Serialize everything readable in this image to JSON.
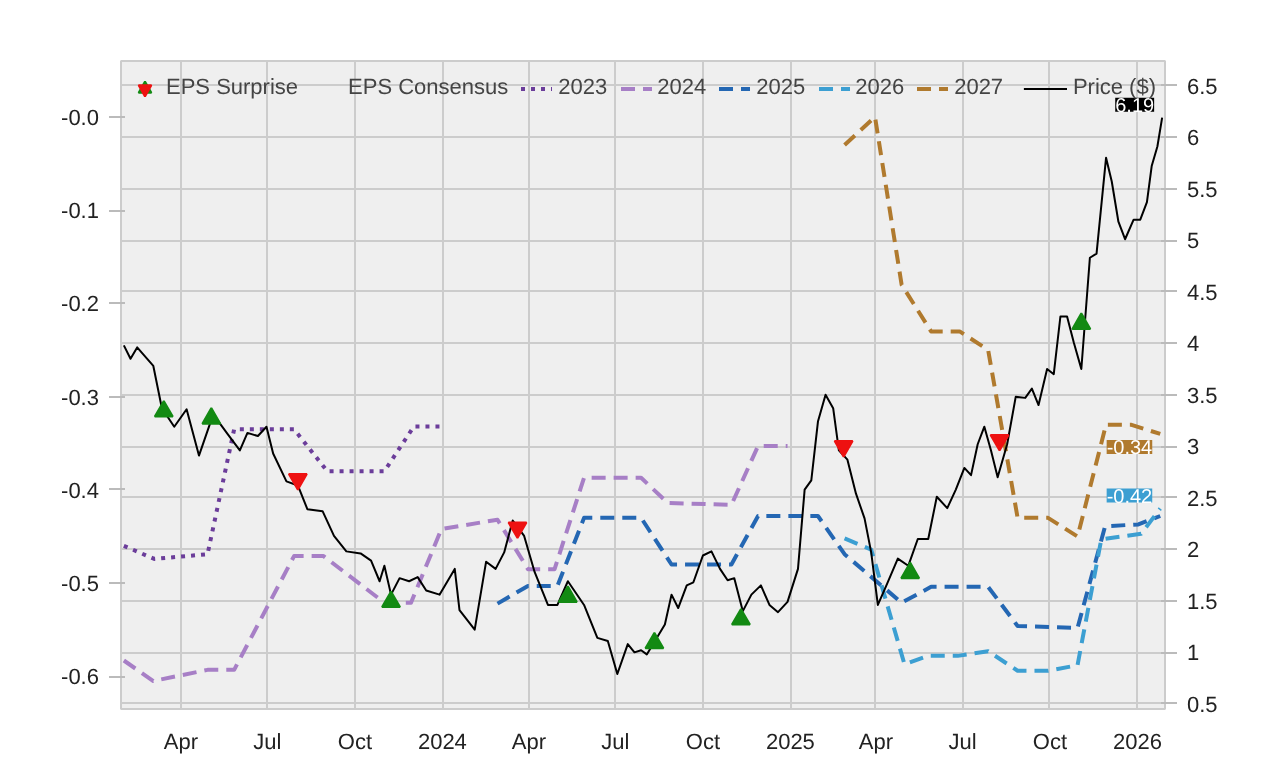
{
  "chart_data": {
    "type": "line",
    "legend_title": "EPS Consensus",
    "legend": "top",
    "grid": true,
    "xlim": [
      "2023-01-28",
      "2026-01-30"
    ],
    "xticks": [
      {
        "value": "2023-04-01",
        "label": "Apr"
      },
      {
        "value": "2023-07-01",
        "label": "Jul"
      },
      {
        "value": "2023-10-01",
        "label": "Oct"
      },
      {
        "value": "2024-01-01",
        "label": "2024"
      },
      {
        "value": "2024-04-01",
        "label": "Apr"
      },
      {
        "value": "2024-07-01",
        "label": "Jul"
      },
      {
        "value": "2024-10-01",
        "label": "Oct"
      },
      {
        "value": "2025-01-01",
        "label": "2025"
      },
      {
        "value": "2025-04-01",
        "label": "Apr"
      },
      {
        "value": "2025-07-01",
        "label": "Jul"
      },
      {
        "value": "2025-10-01",
        "label": "Oct"
      },
      {
        "value": "2026-01-01",
        "label": "2026"
      }
    ],
    "ylim": [
      -0.635,
      0.06
    ],
    "yticks": [
      {
        "value": 0,
        "label": "-0.0"
      },
      -0.1,
      -0.2,
      -0.3,
      -0.4,
      -0.5,
      -0.6
    ],
    "y2lim": [
      0.45,
      6.74
    ],
    "y2ticks": [
      0.5,
      1,
      1.5,
      2,
      2.5,
      3,
      3.5,
      4,
      4.5,
      5,
      5.5,
      6,
      6.5
    ],
    "series": [
      {
        "name": "2023",
        "type": "line",
        "line_style": "dotted",
        "color": "#6b3d9a",
        "x": [
          "2023-01-31",
          "2023-03-04",
          "2023-04-29",
          "2023-05-27",
          "2023-07-29",
          "2023-09-02",
          "2023-11-01",
          "2023-12-02",
          "2023-12-31"
        ],
        "values": [
          -0.46,
          -0.474,
          -0.469,
          -0.335,
          -0.335,
          -0.38,
          -0.38,
          -0.332,
          -0.332
        ]
      },
      {
        "name": "2024",
        "type": "line",
        "line_style": "dashed",
        "color": "#a77fc6",
        "x": [
          "2023-01-31",
          "2023-03-03",
          "2023-04-29",
          "2023-05-27",
          "2023-07-29",
          "2023-08-29",
          "2023-11-01",
          "2023-11-29",
          "2023-12-31",
          "2024-02-28",
          "2024-03-31",
          "2024-04-28",
          "2024-05-29",
          "2024-07-28",
          "2024-08-25",
          "2024-10-31",
          "2024-11-28",
          "2024-12-29"
        ],
        "values": [
          -0.583,
          -0.605,
          -0.593,
          -0.593,
          -0.471,
          -0.471,
          -0.521,
          -0.521,
          -0.442,
          -0.432,
          -0.485,
          -0.485,
          -0.387,
          -0.387,
          -0.414,
          -0.416,
          -0.353,
          -0.353
        ]
      },
      {
        "name": "2025",
        "type": "line",
        "line_style": "dashed",
        "color": "#2467b3",
        "x": [
          "2024-02-28",
          "2024-03-31",
          "2024-05-01",
          "2024-05-29",
          "2024-07-28",
          "2024-08-29",
          "2024-10-31",
          "2024-11-28",
          "2025-01-30",
          "2025-02-27",
          "2025-04-28",
          "2025-05-29",
          "2025-07-28",
          "2025-08-28",
          "2025-10-30",
          "2025-11-28",
          "2026-01-02",
          "2026-01-25"
        ],
        "values": [
          -0.522,
          -0.503,
          -0.503,
          -0.43,
          -0.43,
          -0.48,
          -0.48,
          -0.428,
          -0.428,
          -0.469,
          -0.521,
          -0.504,
          -0.504,
          -0.546,
          -0.548,
          -0.439,
          -0.437,
          -0.428
        ]
      },
      {
        "name": "2026",
        "type": "line",
        "line_style": "dashed",
        "color": "#3c9fd2",
        "x": [
          "2025-02-27",
          "2025-03-27",
          "2025-05-01",
          "2025-05-26",
          "2025-06-26",
          "2025-07-28",
          "2025-08-28",
          "2025-09-29",
          "2025-10-30",
          "2025-11-24",
          "2026-01-05",
          "2026-01-25"
        ],
        "values": [
          -0.452,
          -0.464,
          -0.587,
          -0.578,
          -0.578,
          -0.573,
          -0.594,
          -0.594,
          -0.588,
          -0.453,
          -0.447,
          -0.42
        ],
        "value_labels": [
          null,
          null,
          null,
          null,
          null,
          null,
          null,
          null,
          null,
          null,
          null,
          "-0.42"
        ]
      },
      {
        "name": "2027",
        "type": "line",
        "line_style": "dashed",
        "color": "#b07a2e",
        "x": [
          "2025-02-27",
          "2025-03-31",
          "2025-04-28",
          "2025-05-29",
          "2025-06-28",
          "2025-07-28",
          "2025-08-28",
          "2025-09-29",
          "2025-10-30",
          "2025-11-29",
          "2025-12-25",
          "2026-01-25"
        ],
        "values": [
          -0.03,
          0.0,
          -0.18,
          -0.23,
          -0.23,
          -0.25,
          -0.43,
          -0.43,
          -0.45,
          -0.33,
          -0.33,
          -0.34
        ],
        "value_labels": [
          null,
          null,
          null,
          null,
          null,
          null,
          null,
          null,
          null,
          null,
          null,
          "-0.34"
        ]
      },
      {
        "name": "Price ($)",
        "type": "line",
        "axis": "y2",
        "line_style": "solid",
        "color": "#000000",
        "x": [
          "2023-01-31",
          "2023-02-07",
          "2023-02-14",
          "2023-03-03",
          "2023-03-12",
          "2023-03-25",
          "2023-04-07",
          "2023-04-20",
          "2023-05-05",
          "2023-05-20",
          "2023-06-02",
          "2023-06-10",
          "2023-06-21",
          "2023-06-30",
          "2023-07-07",
          "2023-07-21",
          "2023-08-02",
          "2023-08-12",
          "2023-08-28",
          "2023-09-09",
          "2023-09-22",
          "2023-10-07",
          "2023-10-18",
          "2023-10-27",
          "2023-11-01",
          "2023-11-08",
          "2023-11-17",
          "2023-11-27",
          "2023-12-06",
          "2023-12-15",
          "2023-12-29",
          "2024-01-14",
          "2024-01-19",
          "2024-02-04",
          "2024-02-16",
          "2024-02-26",
          "2024-03-06",
          "2024-03-15",
          "2024-03-27",
          "2024-04-07",
          "2024-04-21",
          "2024-05-01",
          "2024-05-12",
          "2024-05-29",
          "2024-06-12",
          "2024-06-23",
          "2024-07-03",
          "2024-07-14",
          "2024-07-21",
          "2024-07-28",
          "2024-08-03",
          "2024-08-22",
          "2024-08-29",
          "2024-09-05",
          "2024-09-14",
          "2024-09-21",
          "2024-10-01",
          "2024-10-10",
          "2024-10-19",
          "2024-10-27",
          "2024-11-03",
          "2024-11-12",
          "2024-11-21",
          "2024-12-01",
          "2024-12-10",
          "2024-12-19",
          "2024-12-29",
          "2025-01-09",
          "2025-01-16",
          "2025-01-23",
          "2025-01-30",
          "2025-02-07",
          "2025-02-15",
          "2025-02-21",
          "2025-03-02",
          "2025-03-11",
          "2025-03-20",
          "2025-03-27",
          "2025-04-03",
          "2025-04-12",
          "2025-04-24",
          "2025-05-05",
          "2025-05-15",
          "2025-05-26",
          "2025-06-04",
          "2025-06-15",
          "2025-06-24",
          "2025-07-03",
          "2025-07-10",
          "2025-07-17",
          "2025-07-24",
          "2025-07-31",
          "2025-08-07",
          "2025-08-17",
          "2025-08-26",
          "2025-09-05",
          "2025-09-12",
          "2025-09-19",
          "2025-09-28",
          "2025-10-05",
          "2025-10-12",
          "2025-10-19",
          "2025-10-26",
          "2025-11-03",
          "2025-11-12",
          "2025-11-19",
          "2025-11-29",
          "2025-12-05",
          "2025-12-12",
          "2025-12-19",
          "2025-12-28",
          "2026-01-04",
          "2026-01-11",
          "2026-01-16",
          "2026-01-22",
          "2026-01-27"
        ],
        "values": [
          3.98,
          3.85,
          3.96,
          3.78,
          3.37,
          3.19,
          3.36,
          2.91,
          3.31,
          3.12,
          2.96,
          3.13,
          3.1,
          3.19,
          2.93,
          2.66,
          2.62,
          2.39,
          2.37,
          2.13,
          1.98,
          1.96,
          1.89,
          1.69,
          1.84,
          1.56,
          1.72,
          1.69,
          1.73,
          1.6,
          1.56,
          1.81,
          1.41,
          1.22,
          1.88,
          1.81,
          1.97,
          2.28,
          2.13,
          1.78,
          1.46,
          1.46,
          1.69,
          1.46,
          1.14,
          1.11,
          0.79,
          1.08,
          1.0,
          1.02,
          0.98,
          1.27,
          1.56,
          1.43,
          1.65,
          1.68,
          1.94,
          1.98,
          1.81,
          1.7,
          1.72,
          1.4,
          1.56,
          1.65,
          1.46,
          1.39,
          1.49,
          1.81,
          2.58,
          2.67,
          3.24,
          3.5,
          3.37,
          2.96,
          2.87,
          2.54,
          2.3,
          1.97,
          1.46,
          1.65,
          1.91,
          1.84,
          2.1,
          2.1,
          2.51,
          2.4,
          2.58,
          2.79,
          2.72,
          3.02,
          3.19,
          2.96,
          2.7,
          3.02,
          3.48,
          3.47,
          3.56,
          3.4,
          3.75,
          3.7,
          4.26,
          4.26,
          4.01,
          3.75,
          4.83,
          4.87,
          5.8,
          5.57,
          5.18,
          5.01,
          5.2,
          5.2,
          5.37,
          5.72,
          5.91,
          6.19
        ],
        "value_labels": [
          null,
          null,
          null,
          null,
          null,
          null,
          null,
          null,
          null,
          null,
          null,
          null,
          null,
          null,
          null,
          null,
          null,
          null,
          null,
          null,
          null,
          null,
          null,
          null,
          null,
          null,
          null,
          null,
          null,
          null,
          null,
          null,
          null,
          null,
          null,
          null,
          null,
          null,
          null,
          null,
          null,
          null,
          null,
          null,
          null,
          null,
          null,
          null,
          null,
          null,
          null,
          null,
          null,
          null,
          null,
          null,
          null,
          null,
          null,
          null,
          null,
          null,
          null,
          null,
          null,
          null,
          null,
          null,
          null,
          null,
          null,
          null,
          null,
          null,
          null,
          null,
          null,
          null,
          null,
          null,
          null,
          null,
          null,
          null,
          null,
          null,
          null,
          null,
          null,
          null,
          null,
          null,
          null,
          null,
          null,
          null,
          null,
          null,
          null,
          null,
          null,
          null,
          null,
          null,
          null,
          null,
          null,
          null,
          null,
          null,
          null,
          null,
          null,
          null,
          null,
          "6.19"
        ]
      },
      {
        "name": "EPS Surprise",
        "type": "scatter",
        "axis": "y2",
        "marker": "triangle",
        "color": "#138a13",
        "x": [
          "2023-03-14",
          "2023-05-03",
          "2023-11-08",
          "2024-05-12",
          "2024-08-11",
          "2024-11-10",
          "2025-05-07",
          "2025-11-03"
        ],
        "values": [
          3.34,
          3.27,
          1.49,
          1.54,
          1.09,
          1.32,
          1.77,
          4.19
        ]
      },
      {
        "type": "scatter",
        "axis": "y2",
        "color": "#ee1111",
        "x": [
          "2023-08-02",
          "2024-03-20",
          "2025-02-26",
          "2025-08-09"
        ],
        "values": [
          2.68,
          2.21,
          3.0,
          3.06
        ]
      }
    ]
  }
}
